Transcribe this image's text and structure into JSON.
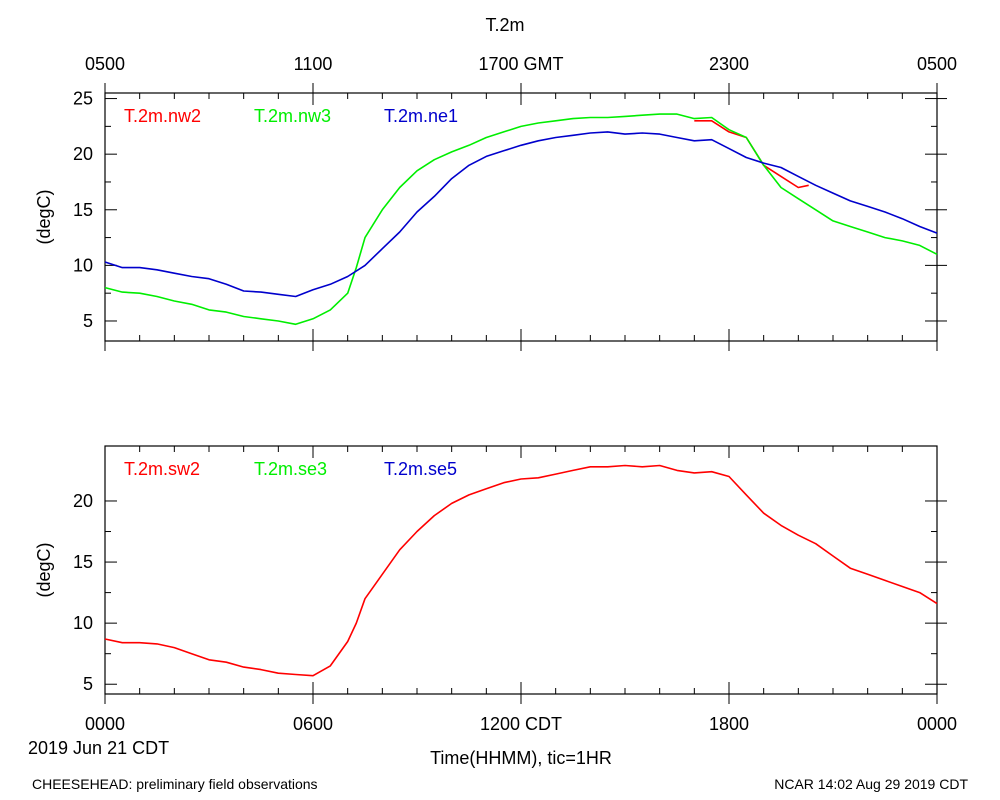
{
  "title": "T.2m",
  "footer": {
    "left": "CHEESEHEAD: preliminary field observations",
    "right": "NCAR 14:02 Aug 29 2019 CDT"
  },
  "x_axis": {
    "label": "Time(HHMM), tic=1HR",
    "date_label": "2019 Jun 21 CDT",
    "top_ticks": [
      "0500",
      "1100",
      "1700 GMT",
      "2300",
      "0500"
    ],
    "bottom_ticks": [
      "0000",
      "0600",
      "1200 CDT",
      "1800",
      "0000"
    ],
    "range_hours": [
      0,
      24
    ]
  },
  "colors": {
    "red": "#ff0000",
    "green": "#00ee00",
    "blue": "#0000cc",
    "axis": "#000000"
  },
  "chart_data": [
    {
      "type": "line",
      "ylabel": "(degC)",
      "ylim": [
        3.2,
        25.5
      ],
      "yticks": [
        5,
        10,
        15,
        20,
        25
      ],
      "legend": [
        "T.2m.nw2",
        "T.2m.nw3",
        "T.2m.ne1"
      ],
      "series": [
        {
          "name": "T.2m.nw2",
          "color": "#ff0000",
          "x": [
            17.0,
            17.5,
            18.0,
            18.5,
            19.0,
            19.5,
            20.0,
            20.3
          ],
          "y": [
            23.0,
            23.0,
            22.0,
            21.5,
            19.0,
            18.0,
            17.0,
            17.2
          ]
        },
        {
          "name": "T.2m.nw3",
          "color": "#00ee00",
          "x": [
            0,
            0.5,
            1.0,
            1.5,
            2.0,
            2.5,
            3.0,
            3.5,
            4.0,
            4.5,
            5.0,
            5.5,
            6.0,
            6.5,
            7.0,
            7.25,
            7.5,
            8.0,
            8.5,
            9.0,
            9.5,
            10.0,
            10.5,
            11.0,
            11.5,
            12.0,
            12.5,
            13.0,
            13.5,
            14.0,
            14.5,
            15.0,
            15.5,
            16.0,
            16.5,
            17.0,
            17.5,
            18.0,
            18.5,
            19.0,
            19.5,
            20.0,
            20.5,
            21.0,
            21.5,
            22.0,
            22.5,
            23.0,
            23.5,
            24.0
          ],
          "y": [
            8.0,
            7.6,
            7.5,
            7.2,
            6.8,
            6.5,
            6.0,
            5.8,
            5.4,
            5.2,
            5.0,
            4.7,
            5.2,
            6.0,
            7.5,
            9.8,
            12.5,
            15.0,
            17.0,
            18.5,
            19.5,
            20.2,
            20.8,
            21.5,
            22.0,
            22.5,
            22.8,
            23.0,
            23.2,
            23.3,
            23.3,
            23.4,
            23.5,
            23.6,
            23.6,
            23.2,
            23.3,
            22.2,
            21.5,
            19.0,
            17.0,
            16.0,
            15.0,
            14.0,
            13.5,
            13.0,
            12.5,
            12.2,
            11.8,
            11.0
          ]
        },
        {
          "name": "T.2m.ne1",
          "color": "#0000cc",
          "x": [
            0,
            0.5,
            1.0,
            1.5,
            2.0,
            2.5,
            3.0,
            3.5,
            4.0,
            4.5,
            5.0,
            5.5,
            6.0,
            6.5,
            7.0,
            7.5,
            8.0,
            8.5,
            9.0,
            9.5,
            10.0,
            10.5,
            11.0,
            11.5,
            12.0,
            12.5,
            13.0,
            13.5,
            14.0,
            14.5,
            15.0,
            15.5,
            16.0,
            16.5,
            17.0,
            17.5,
            18.0,
            18.5,
            19.0,
            19.5,
            20.0,
            20.5,
            21.0,
            21.5,
            22.0,
            22.5,
            23.0,
            23.5,
            24.0
          ],
          "y": [
            10.3,
            9.8,
            9.8,
            9.6,
            9.3,
            9.0,
            8.8,
            8.3,
            7.7,
            7.6,
            7.4,
            7.2,
            7.8,
            8.3,
            9.0,
            10.0,
            11.5,
            13.0,
            14.8,
            16.2,
            17.8,
            19.0,
            19.8,
            20.3,
            20.8,
            21.2,
            21.5,
            21.7,
            21.9,
            22.0,
            21.8,
            21.9,
            21.8,
            21.5,
            21.2,
            21.3,
            20.5,
            19.7,
            19.2,
            18.8,
            18.0,
            17.2,
            16.5,
            15.8,
            15.3,
            14.8,
            14.2,
            13.5,
            12.9
          ]
        }
      ]
    },
    {
      "type": "line",
      "ylabel": "(degC)",
      "ylim": [
        4.2,
        24.5
      ],
      "yticks": [
        5,
        10,
        15,
        20
      ],
      "legend": [
        "T.2m.sw2",
        "T.2m.se3",
        "T.2m.se5"
      ],
      "series": [
        {
          "name": "T.2m.sw2",
          "color": "#ff0000",
          "x": [
            0,
            0.5,
            1.0,
            1.5,
            2.0,
            2.5,
            3.0,
            3.5,
            4.0,
            4.5,
            5.0,
            5.5,
            6.0,
            6.5,
            7.0,
            7.25,
            7.5,
            8.0,
            8.5,
            9.0,
            9.5,
            10.0,
            10.5,
            11.0,
            11.5,
            12.0,
            12.5,
            13.0,
            13.5,
            14.0,
            14.5,
            15.0,
            15.5,
            16.0,
            16.5,
            17.0,
            17.5,
            18.0,
            18.5,
            19.0,
            19.5,
            20.0,
            20.5,
            21.0,
            21.5,
            22.0,
            22.5,
            23.0,
            23.5,
            24.0
          ],
          "y": [
            8.7,
            8.4,
            8.4,
            8.3,
            8.0,
            7.5,
            7.0,
            6.8,
            6.4,
            6.2,
            5.9,
            5.8,
            5.7,
            6.5,
            8.5,
            10.0,
            12.0,
            14.0,
            16.0,
            17.5,
            18.8,
            19.8,
            20.5,
            21.0,
            21.5,
            21.8,
            21.9,
            22.2,
            22.5,
            22.8,
            22.8,
            22.9,
            22.8,
            22.9,
            22.5,
            22.3,
            22.4,
            22.0,
            20.5,
            19.0,
            18.0,
            17.2,
            16.5,
            15.5,
            14.5,
            14.0,
            13.5,
            13.0,
            12.5,
            11.6
          ]
        }
      ]
    }
  ]
}
